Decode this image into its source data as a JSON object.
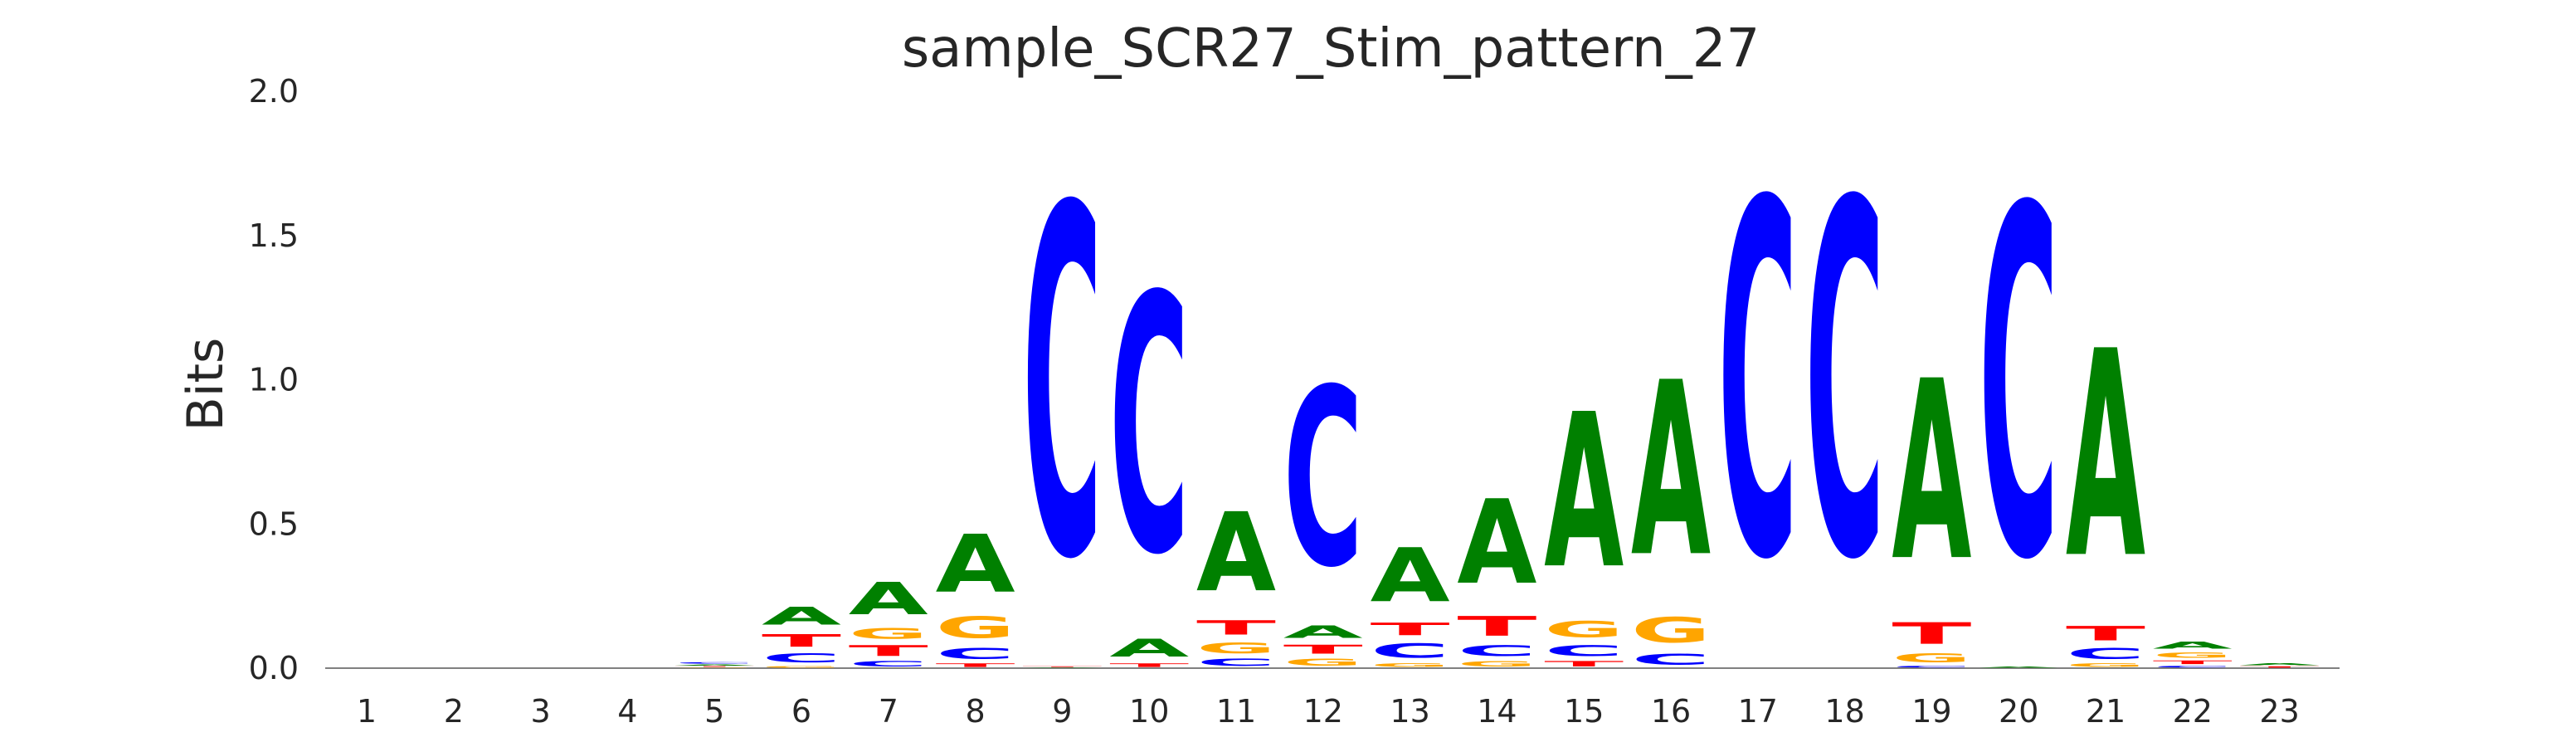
{
  "chart_data": {
    "type": "sequence_logo",
    "title": "sample_SCR27_Stim_pattern_27",
    "ylabel": "Bits",
    "xlabel": "",
    "ylim": [
      0,
      2.0
    ],
    "yticks": [
      "0.0",
      "0.5",
      "1.0",
      "1.5",
      "2.0"
    ],
    "colors": {
      "A": "#008000",
      "C": "#0000ff",
      "G": "#ffa500",
      "T": "#ff0000"
    },
    "positions": [
      {
        "pos": "1",
        "letters": []
      },
      {
        "pos": "2",
        "letters": []
      },
      {
        "pos": "3",
        "letters": []
      },
      {
        "pos": "4",
        "letters": []
      },
      {
        "pos": "5",
        "letters": [
          {
            "base": "G",
            "bits": 0.004
          },
          {
            "base": "T",
            "bits": 0.004
          },
          {
            "base": "A",
            "bits": 0.006
          },
          {
            "base": "C",
            "bits": 0.008
          }
        ]
      },
      {
        "pos": "6",
        "letters": [
          {
            "base": "G",
            "bits": 0.01
          },
          {
            "base": "C",
            "bits": 0.05
          },
          {
            "base": "T",
            "bits": 0.07
          },
          {
            "base": "A",
            "bits": 0.1
          }
        ]
      },
      {
        "pos": "7",
        "letters": [
          {
            "base": "C",
            "bits": 0.03
          },
          {
            "base": "T",
            "bits": 0.06
          },
          {
            "base": "G",
            "bits": 0.06
          },
          {
            "base": "A",
            "bits": 0.18
          }
        ]
      },
      {
        "pos": "8",
        "letters": [
          {
            "base": "T",
            "bits": 0.02
          },
          {
            "base": "C",
            "bits": 0.06
          },
          {
            "base": "G",
            "bits": 0.12
          },
          {
            "base": "A",
            "bits": 0.32
          }
        ]
      },
      {
        "pos": "9",
        "letters": [
          {
            "base": "A",
            "bits": 0.003
          },
          {
            "base": "T",
            "bits": 0.004
          },
          {
            "base": "C",
            "bits": 1.94
          }
        ]
      },
      {
        "pos": "10",
        "letters": [
          {
            "base": "T",
            "bits": 0.02
          },
          {
            "base": "A",
            "bits": 0.1
          },
          {
            "base": "C",
            "bits": 1.43
          }
        ]
      },
      {
        "pos": "11",
        "letters": [
          {
            "base": "C",
            "bits": 0.04
          },
          {
            "base": "G",
            "bits": 0.06
          },
          {
            "base": "T",
            "bits": 0.08
          },
          {
            "base": "A",
            "bits": 0.44
          }
        ]
      },
      {
        "pos": "12",
        "letters": [
          {
            "base": "G",
            "bits": 0.04
          },
          {
            "base": "T",
            "bits": 0.05
          },
          {
            "base": "A",
            "bits": 0.07
          },
          {
            "base": "C",
            "bits": 0.99
          }
        ]
      },
      {
        "pos": "13",
        "letters": [
          {
            "base": "G",
            "bits": 0.02
          },
          {
            "base": "C",
            "bits": 0.08
          },
          {
            "base": "T",
            "bits": 0.07
          },
          {
            "base": "A",
            "bits": 0.3
          }
        ]
      },
      {
        "pos": "14",
        "letters": [
          {
            "base": "G",
            "bits": 0.03
          },
          {
            "base": "C",
            "bits": 0.06
          },
          {
            "base": "T",
            "bits": 0.11
          },
          {
            "base": "A",
            "bits": 0.47
          }
        ]
      },
      {
        "pos": "15",
        "letters": [
          {
            "base": "T",
            "bits": 0.03
          },
          {
            "base": "C",
            "bits": 0.06
          },
          {
            "base": "G",
            "bits": 0.09
          },
          {
            "base": "A",
            "bits": 0.86
          }
        ]
      },
      {
        "pos": "16",
        "letters": [
          {
            "base": "C",
            "bits": 0.06
          },
          {
            "base": "G",
            "bits": 0.14
          },
          {
            "base": "A",
            "bits": 0.97
          }
        ]
      },
      {
        "pos": "17",
        "letters": [
          {
            "base": "C",
            "bits": 1.97
          }
        ]
      },
      {
        "pos": "18",
        "letters": [
          {
            "base": "C",
            "bits": 1.97
          }
        ]
      },
      {
        "pos": "19",
        "letters": [
          {
            "base": "C",
            "bits": 0.01
          },
          {
            "base": "G",
            "bits": 0.05
          },
          {
            "base": "T",
            "bits": 0.12
          },
          {
            "base": "A",
            "bits": 1.0
          }
        ]
      },
      {
        "pos": "20",
        "letters": [
          {
            "base": "A",
            "bits": 0.005
          },
          {
            "base": "C",
            "bits": 1.94
          }
        ]
      },
      {
        "pos": "21",
        "letters": [
          {
            "base": "G",
            "bits": 0.02
          },
          {
            "base": "C",
            "bits": 0.06
          },
          {
            "base": "T",
            "bits": 0.08
          },
          {
            "base": "A",
            "bits": 1.15
          }
        ]
      },
      {
        "pos": "22",
        "letters": [
          {
            "base": "C",
            "bits": 0.01
          },
          {
            "base": "T",
            "bits": 0.02
          },
          {
            "base": "G",
            "bits": 0.03
          },
          {
            "base": "A",
            "bits": 0.04
          }
        ]
      },
      {
        "pos": "23",
        "letters": [
          {
            "base": "T",
            "bits": 0.008
          },
          {
            "base": "A",
            "bits": 0.012
          }
        ]
      }
    ]
  }
}
